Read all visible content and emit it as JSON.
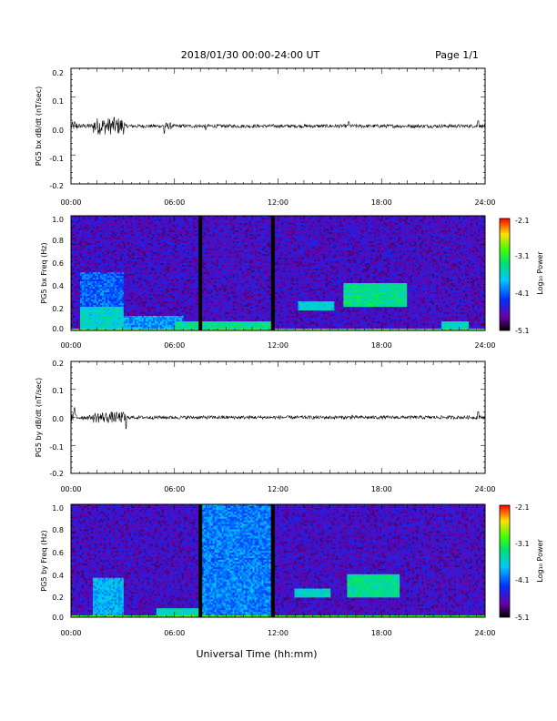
{
  "header": {
    "title": "2018/01/30  00:00-24:00 UT",
    "page": "Page 1/1"
  },
  "footer": {
    "xlabel": "Universal Time (hh:mm)"
  },
  "colorbar": {
    "label": "Log₁₀ Power",
    "ticks": [
      "-2.1",
      "-3.1",
      "-4.1",
      "-5.1"
    ]
  },
  "chart_data": [
    {
      "type": "line",
      "ylabel": "PG5 bx dB/dt (nT/sec)",
      "x_ticks": [
        "00:00",
        "06:00",
        "12:00",
        "18:00",
        "24:00"
      ],
      "y_ticks": [
        "0.2",
        "0.1",
        "0.0",
        "-0.1",
        "-0.2"
      ],
      "xlim_hours": [
        0,
        24
      ],
      "ylim": [
        -0.2,
        0.2
      ],
      "noise_profile": [
        {
          "from": 0.0,
          "to": 0.4,
          "amp": 0.015
        },
        {
          "from": 0.4,
          "to": 1.3,
          "amp": 0.008
        },
        {
          "from": 1.3,
          "to": 3.1,
          "amp": 0.03
        },
        {
          "from": 3.1,
          "to": 5.3,
          "amp": 0.006
        },
        {
          "from": 5.3,
          "to": 5.8,
          "amp": 0.012
        },
        {
          "from": 5.8,
          "to": 24.0,
          "amp": 0.006
        }
      ],
      "spikes": [
        {
          "x": 0.2,
          "y": 0.015
        },
        {
          "x": 2.5,
          "y": 0.03
        },
        {
          "x": 5.4,
          "y": -0.025
        },
        {
          "x": 7.8,
          "y": -0.012
        },
        {
          "x": 16.1,
          "y": 0.015
        },
        {
          "x": 23.6,
          "y": 0.018
        }
      ]
    },
    {
      "type": "heatmap",
      "ylabel": "PG5 bx Freq (Hz)",
      "x_ticks": [
        "00:00",
        "06:00",
        "12:00",
        "18:00",
        "24:00"
      ],
      "y_ticks": [
        "1.0",
        "0.8",
        "0.6",
        "0.4",
        "0.2",
        "0.0"
      ],
      "xlim_hours": [
        0,
        24
      ],
      "ylim": [
        0,
        1.0
      ],
      "zlim_log10": [
        -5.1,
        -2.1
      ],
      "background_log10": -4.6,
      "gaps_hours": [
        7.5,
        11.7
      ],
      "features": [
        {
          "t0": 0.0,
          "t1": 24.0,
          "f0": 0.0,
          "f1": 0.02,
          "level": -3.0
        },
        {
          "t0": 0.5,
          "t1": 3.0,
          "f0": 0.0,
          "f1": 0.2,
          "level": -3.6
        },
        {
          "t0": 0.5,
          "t1": 3.0,
          "f0": 0.2,
          "f1": 0.5,
          "level": -4.1
        },
        {
          "t0": 3.0,
          "t1": 6.5,
          "f0": 0.0,
          "f1": 0.12,
          "level": -3.9
        },
        {
          "t0": 6.0,
          "t1": 11.7,
          "f0": 0.0,
          "f1": 0.08,
          "level": -3.4
        },
        {
          "t0": 13.2,
          "t1": 15.3,
          "f0": 0.18,
          "f1": 0.26,
          "level": -3.6
        },
        {
          "t0": 15.8,
          "t1": 19.5,
          "f0": 0.2,
          "f1": 0.42,
          "level": -3.4
        },
        {
          "t0": 21.5,
          "t1": 23.0,
          "f0": 0.0,
          "f1": 0.08,
          "level": -3.5
        }
      ]
    },
    {
      "type": "line",
      "ylabel": "PG5 by dB/dt (nT/sec)",
      "x_ticks": [
        "00:00",
        "06:00",
        "12:00",
        "18:00",
        "24:00"
      ],
      "y_ticks": [
        "0.2",
        "0.1",
        "0.0",
        "-0.1",
        "-0.2"
      ],
      "xlim_hours": [
        0,
        24
      ],
      "ylim": [
        -0.2,
        0.2
      ],
      "noise_profile": [
        {
          "from": 0.0,
          "to": 0.4,
          "amp": 0.018
        },
        {
          "from": 0.4,
          "to": 1.3,
          "amp": 0.008
        },
        {
          "from": 1.3,
          "to": 3.2,
          "amp": 0.02
        },
        {
          "from": 3.2,
          "to": 24.0,
          "amp": 0.006
        }
      ],
      "spikes": [
        {
          "x": 0.2,
          "y": 0.035
        },
        {
          "x": 3.2,
          "y": -0.04
        },
        {
          "x": 16.3,
          "y": 0.008
        },
        {
          "x": 23.6,
          "y": 0.02
        }
      ]
    },
    {
      "type": "heatmap",
      "ylabel": "PG5 by Freq (Hz)",
      "x_ticks": [
        "00:00",
        "06:00",
        "12:00",
        "18:00",
        "24:00"
      ],
      "y_ticks": [
        "1.0",
        "0.8",
        "0.6",
        "0.4",
        "0.2",
        "0.0"
      ],
      "xlim_hours": [
        0,
        24
      ],
      "ylim": [
        0,
        1.0
      ],
      "zlim_log10": [
        -5.1,
        -2.1
      ],
      "background_log10": -4.6,
      "gaps_hours": [
        7.5,
        11.7
      ],
      "features": [
        {
          "t0": 0.0,
          "t1": 24.0,
          "f0": 0.0,
          "f1": 0.02,
          "level": -3.0
        },
        {
          "t0": 1.3,
          "t1": 3.0,
          "f0": 0.0,
          "f1": 0.35,
          "level": -3.8
        },
        {
          "t0": 5.0,
          "t1": 7.5,
          "f0": 0.0,
          "f1": 0.08,
          "level": -3.5
        },
        {
          "t0": 7.6,
          "t1": 11.6,
          "f0": 0.0,
          "f1": 1.0,
          "level": -4.0
        },
        {
          "t0": 13.0,
          "t1": 15.0,
          "f0": 0.18,
          "f1": 0.26,
          "level": -3.6
        },
        {
          "t0": 16.0,
          "t1": 19.0,
          "f0": 0.18,
          "f1": 0.38,
          "level": -3.4
        }
      ]
    }
  ]
}
